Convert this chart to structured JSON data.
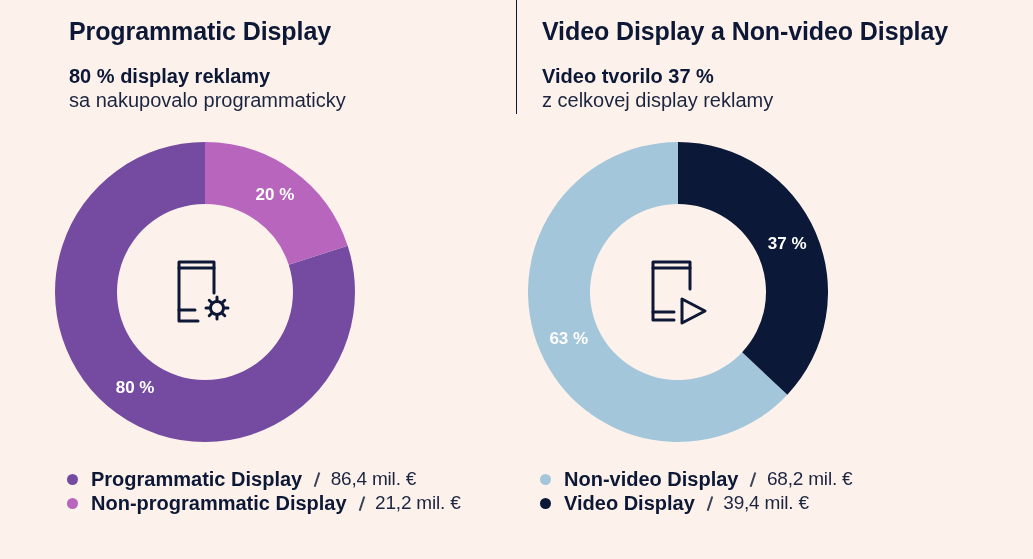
{
  "chart_data": [
    {
      "type": "donut",
      "title": "Programmatic Display",
      "subtitle": "80 % display reklamy\nsa nakupovalo programmaticky",
      "categories": [
        "Programmatic Display",
        "Non-programmatic Display"
      ],
      "values": [
        80,
        20
      ],
      "colors": [
        "#744ba0",
        "#b865bd"
      ],
      "value_labels": [
        "80 %",
        "20 %"
      ],
      "legend": "bottom",
      "annotations": [
        {
          "text": "86,4 mil. €",
          "x": "Programmatic Display"
        },
        {
          "text": "21,2 mil. €",
          "x": "Non-programmatic Display"
        }
      ]
    },
    {
      "type": "donut",
      "title": "Video Display a Non-video Display",
      "subtitle": "Video tvorilo 37 %\nz celkovej display reklamy",
      "categories": [
        "Non-video Display",
        "Video Display"
      ],
      "values": [
        63,
        37
      ],
      "colors": [
        "#a3c6db",
        "#0b1838"
      ],
      "value_labels": [
        "63 %",
        "37 %"
      ],
      "legend": "bottom",
      "annotations": [
        {
          "text": "68,2 mil. €",
          "x": "Non-video Display"
        },
        {
          "text": "39,4 mil. €",
          "x": "Video Display"
        }
      ]
    }
  ]
}
